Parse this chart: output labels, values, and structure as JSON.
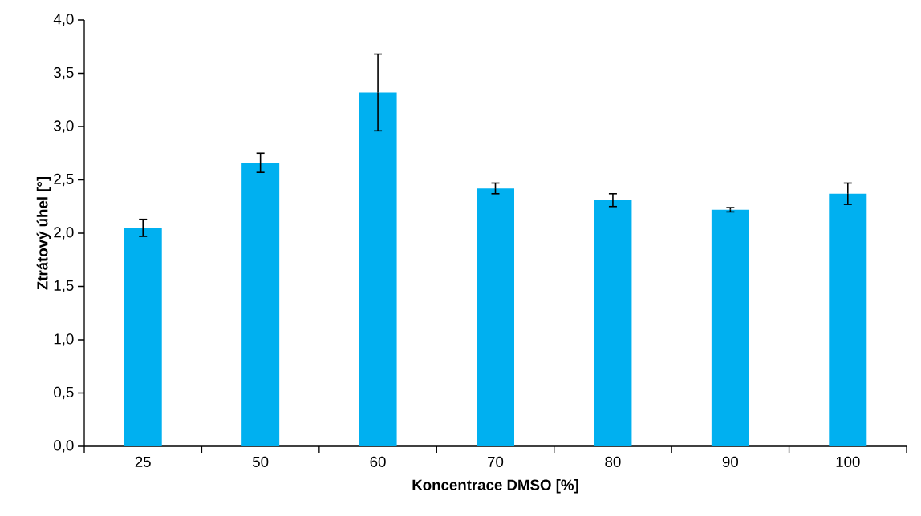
{
  "chart_data": {
    "type": "bar",
    "xlabel": "Koncentrace DMSO [%]",
    "ylabel": "Ztrátový úhel [°]",
    "categories": [
      "25",
      "50",
      "60",
      "70",
      "80",
      "90",
      "100"
    ],
    "values": [
      2.05,
      2.66,
      3.32,
      2.42,
      2.31,
      2.22,
      2.37
    ],
    "errors": [
      0.08,
      0.09,
      0.36,
      0.05,
      0.06,
      0.02,
      0.1
    ],
    "color": "#00b0f0",
    "ylim": [
      0,
      4
    ],
    "yticks": [
      {
        "value": 0,
        "label": "0,0"
      },
      {
        "value": 0.5,
        "label": "0,5"
      },
      {
        "value": 1,
        "label": "1,0"
      },
      {
        "value": 1.5,
        "label": "1,5"
      },
      {
        "value": 2,
        "label": "2,0"
      },
      {
        "value": 2.5,
        "label": "2,5"
      },
      {
        "value": 3,
        "label": "3,0"
      },
      {
        "value": 3.5,
        "label": "3,5"
      },
      {
        "value": 4,
        "label": "4,0"
      }
    ]
  }
}
